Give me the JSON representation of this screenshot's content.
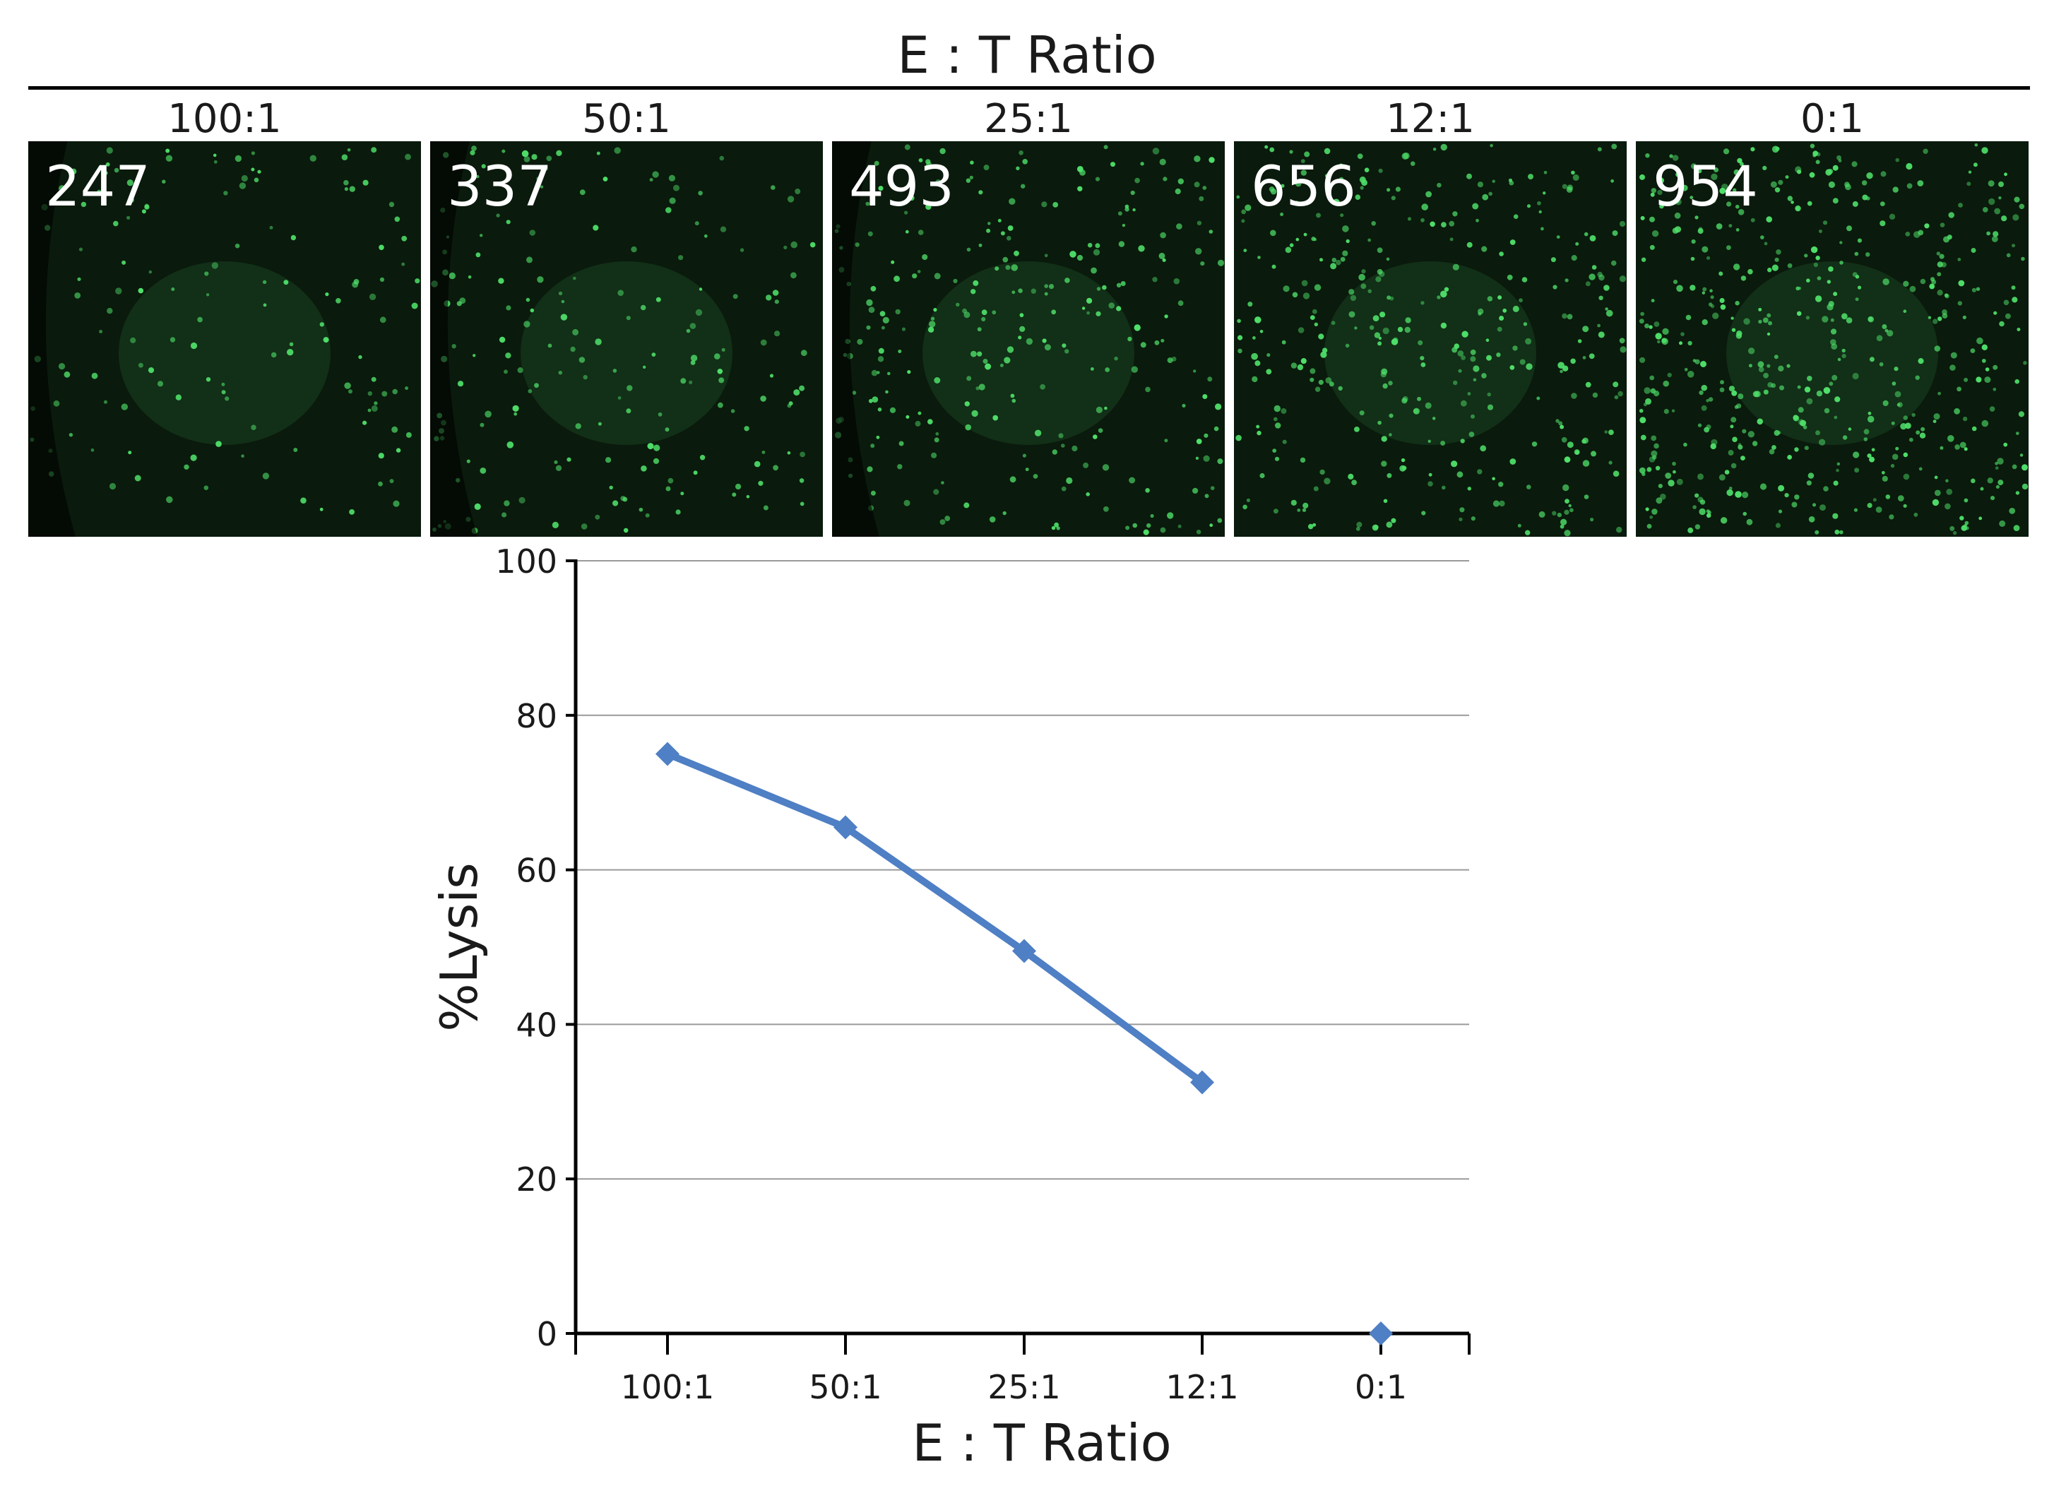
{
  "figure_title": "E : T Ratio",
  "panels": [
    {
      "ratio": "100:1",
      "count": "247"
    },
    {
      "ratio": "50:1",
      "count": "337"
    },
    {
      "ratio": "25:1",
      "count": "493"
    },
    {
      "ratio": "12:1",
      "count": "656"
    },
    {
      "ratio": "0:1",
      "count": "954"
    }
  ],
  "colors": {
    "series": "#4f7fc4",
    "cells": "#4fe06a",
    "panel_bg": "#0a1a0c"
  },
  "chart_data": {
    "type": "line",
    "categories": [
      "100:1",
      "50:1",
      "25:1",
      "12:1",
      "0:1"
    ],
    "series": [
      {
        "name": "%Lysis",
        "values": [
          75,
          65.5,
          49.5,
          32.5,
          0
        ]
      }
    ],
    "line_segments": [
      [
        0,
        3
      ]
    ],
    "xlabel": "E : T Ratio",
    "ylabel": "%Lysis",
    "ylim": [
      0,
      100
    ],
    "yticks": [
      0,
      20,
      40,
      60,
      80,
      100
    ],
    "grid": true
  }
}
